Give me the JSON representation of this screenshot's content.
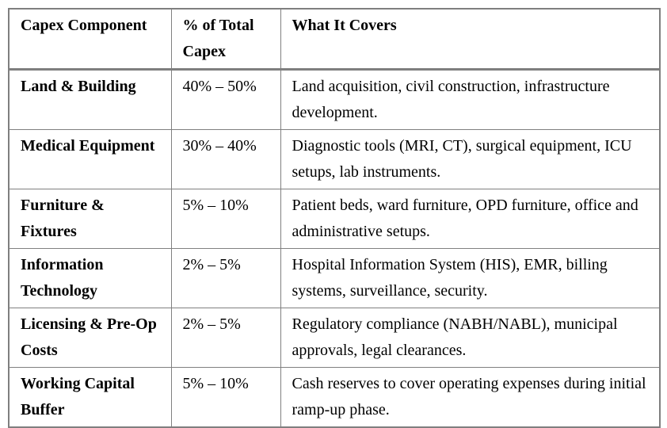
{
  "table": {
    "columns": [
      "Capex Component",
      "% of Total Capex",
      "What It Covers"
    ],
    "rows": [
      {
        "component": "Land & Building",
        "pct": "40% – 50%",
        "covers": "Land acquisition, civil construction, infrastructure development."
      },
      {
        "component": "Medical Equipment",
        "pct": "30% – 40%",
        "covers": "Diagnostic tools (MRI, CT), surgical equipment, ICU setups, lab instruments."
      },
      {
        "component": "Furniture & Fixtures",
        "pct": "5% – 10%",
        "covers": "Patient beds, ward furniture, OPD furniture, office and administrative setups."
      },
      {
        "component": "Information Technology",
        "pct": "2% – 5%",
        "covers": "Hospital Information System (HIS), EMR, billing systems, surveillance, security."
      },
      {
        "component": "Licensing & Pre-Op Costs",
        "pct": "2% – 5%",
        "covers": "Regulatory compliance (NABH/NABL), municipal approvals, legal clearances."
      },
      {
        "component": "Working Capital Buffer",
        "pct": "5% – 10%",
        "covers": "Cash reserves to cover operating expenses during initial ramp-up phase."
      }
    ],
    "text_color": "#000000",
    "border_color": "#808080",
    "background_color": "#ffffff"
  }
}
